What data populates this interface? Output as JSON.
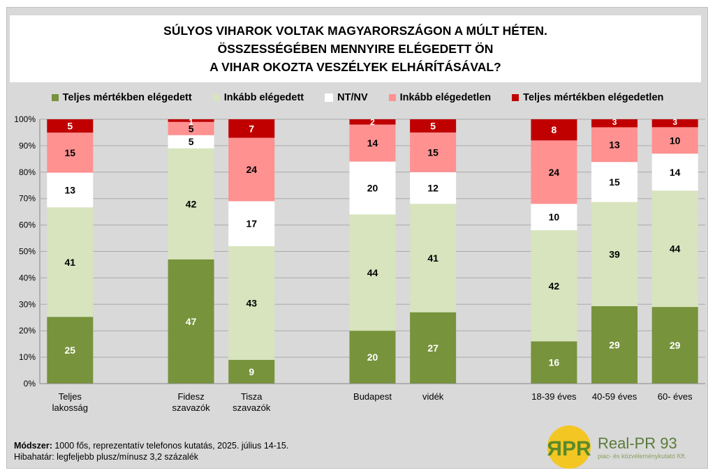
{
  "title_lines": [
    "SÚLYOS VIHAROK VOLTAK MAGYARORSZÁGON A MÚLT HÉTEN.",
    "ÖSSZESSÉGÉBEN MENNYIRE ELÉGEDETT ÖN",
    "A VIHAR OKOZTA VESZÉLYEK ELHÁRÍTÁSÁVAL?"
  ],
  "chart_data": {
    "type": "bar",
    "stacked": true,
    "title": "SÚLYOS VIHAROK VOLTAK MAGYARORSZÁGON A MÚLT HÉTEN. ÖSSZESSÉGÉBEN MENNYIRE ELÉGEDETT ÖN A VIHAR OKOZTA VESZÉLYEK ELHÁRÍTÁSÁVAL?",
    "categories": [
      [
        "Teljes",
        "lakosság"
      ],
      [
        "Fidesz",
        "szavazók"
      ],
      [
        "Tisza",
        "szavazók"
      ],
      [
        "Budapest"
      ],
      [
        "vidék"
      ],
      [
        "18-39 éves"
      ],
      [
        "40-59 éves"
      ],
      [
        "60-  éves"
      ]
    ],
    "ylim": [
      0,
      100
    ],
    "yticks": [
      "0%",
      "10%",
      "20%",
      "30%",
      "40%",
      "50%",
      "60%",
      "70%",
      "80%",
      "90%",
      "100%"
    ],
    "legend_position": "top",
    "grid": true,
    "series": [
      {
        "name": "Teljes mértékben elégedett",
        "color": "#77933c",
        "label_color": "#ffffff",
        "values": [
          25,
          47,
          9,
          20,
          27,
          16,
          29,
          29
        ]
      },
      {
        "name": "Inkább elégedett",
        "color": "#d7e4bd",
        "label_color": "#000000",
        "values": [
          41,
          42,
          43,
          44,
          41,
          42,
          39,
          44
        ]
      },
      {
        "name": "NT/NV",
        "color": "#ffffff",
        "label_color": "#000000",
        "values": [
          13,
          5,
          17,
          20,
          12,
          10,
          15,
          14
        ]
      },
      {
        "name": "Inkább elégedetlen",
        "color": "#ff9191",
        "label_color": "#000000",
        "values": [
          15,
          5,
          24,
          14,
          15,
          24,
          13,
          10
        ]
      },
      {
        "name": "Teljes mértékben elégedetlen",
        "color": "#c00000",
        "label_color": "#ffffff",
        "values": [
          5,
          1,
          7,
          2,
          5,
          8,
          3,
          3
        ]
      }
    ]
  },
  "notes": {
    "method_label": "Módszer:",
    "method_text": " 1000 fős, reprezentatív telefonos kutatás, 2025. július 14-15.",
    "error_text": "Hibahatár: legfeljebb plusz/mínusz 3,2 százalék"
  },
  "logo": {
    "mark": "ЯPR",
    "name": "Real-PR 93",
    "sub": "piac- és közvéleménykutató Kft."
  }
}
